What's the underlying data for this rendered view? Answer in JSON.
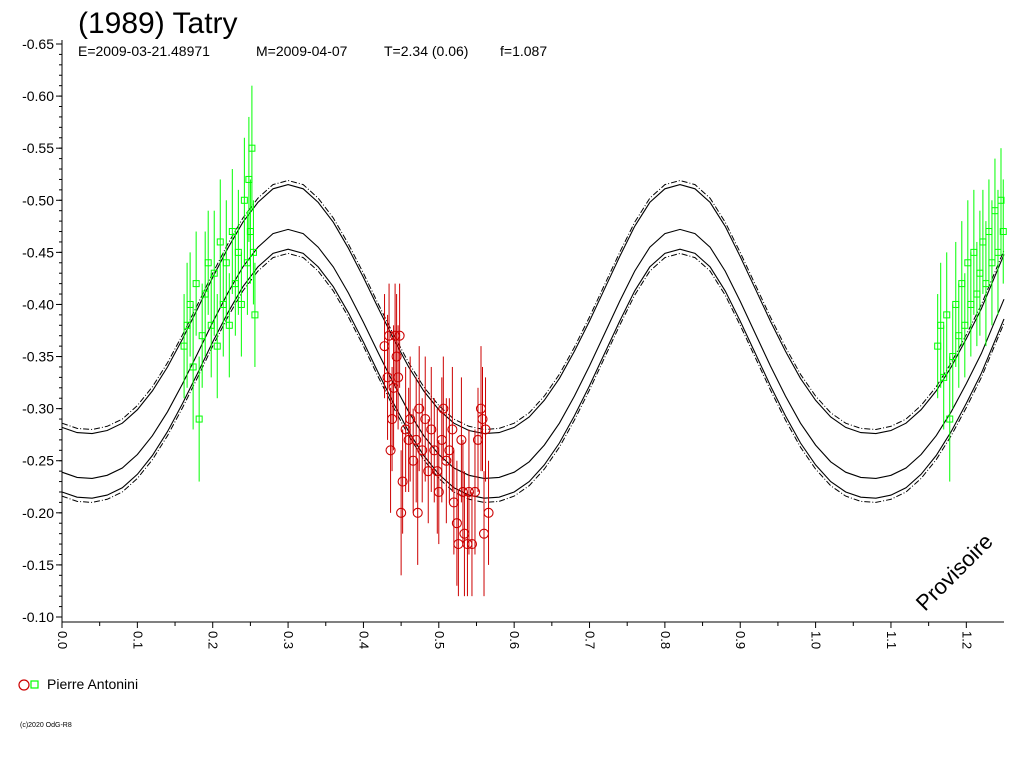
{
  "title": "(1989) Tatry",
  "subtitle": {
    "epoch": "E=2009-03-21.48971",
    "mean": "M=2009-04-07",
    "period": "T=2.34 (0.06)",
    "f": "f=1.087"
  },
  "watermark": "Provisoire",
  "copyright": "(c)2020 OdG-R8",
  "colors": {
    "green": "#00ff00",
    "red": "#cc0000",
    "curve": "#000000"
  },
  "legend": [
    {
      "label": "Pierre Antonini",
      "markers": [
        "circle-red",
        "square-green"
      ]
    }
  ],
  "chart_data": {
    "type": "scatter",
    "xlim": [
      0.0,
      1.25
    ],
    "ylim": [
      -0.65,
      -0.1
    ],
    "y_axis_inverted": true,
    "x_ticks": [
      "0.0",
      "0.1",
      "0.2",
      "0.3",
      "0.4",
      "0.5",
      "0.6",
      "0.7",
      "0.8",
      "0.9",
      "1.0",
      "1.1",
      "1.2"
    ],
    "y_ticks": [
      "-0.65",
      "-0.60",
      "-0.55",
      "-0.50",
      "-0.45",
      "-0.40",
      "-0.35",
      "-0.30",
      "-0.25",
      "-0.20",
      "-0.15",
      "-0.10"
    ],
    "model": {
      "description": "bimodal fit curve",
      "x": [
        0.0,
        0.02,
        0.04,
        0.06,
        0.08,
        0.1,
        0.12,
        0.14,
        0.16,
        0.18,
        0.2,
        0.22,
        0.24,
        0.26,
        0.28,
        0.3,
        0.32,
        0.34,
        0.36,
        0.38,
        0.4,
        0.42,
        0.44,
        0.46,
        0.48,
        0.5,
        0.52,
        0.54,
        0.56,
        0.58,
        0.6,
        0.62,
        0.64,
        0.66,
        0.68,
        0.7,
        0.72,
        0.74,
        0.76,
        0.78,
        0.8,
        0.82,
        0.84,
        0.86,
        0.88,
        0.9,
        0.92,
        0.94,
        0.96,
        0.98,
        1.0,
        1.02,
        1.04,
        1.06,
        1.08,
        1.1,
        1.12,
        1.14,
        1.16,
        1.18,
        1.2,
        1.22,
        1.25
      ],
      "center": [
        -0.239,
        -0.234,
        -0.233,
        -0.236,
        -0.243,
        -0.256,
        -0.274,
        -0.297,
        -0.324,
        -0.353,
        -0.383,
        -0.411,
        -0.436,
        -0.455,
        -0.468,
        -0.472,
        -0.468,
        -0.455,
        -0.436,
        -0.411,
        -0.383,
        -0.353,
        -0.324,
        -0.297,
        -0.274,
        -0.256,
        -0.243,
        -0.236,
        -0.233,
        -0.234,
        -0.239,
        -0.249,
        -0.265,
        -0.286,
        -0.312,
        -0.341,
        -0.372,
        -0.403,
        -0.432,
        -0.455,
        -0.468,
        -0.472,
        -0.468,
        -0.455,
        -0.432,
        -0.403,
        -0.372,
        -0.341,
        -0.312,
        -0.286,
        -0.265,
        -0.249,
        -0.239,
        -0.234,
        -0.233,
        -0.236,
        -0.243,
        -0.256,
        -0.274,
        -0.297,
        -0.324,
        -0.353,
        -0.405
      ],
      "upper_offset": 0.043,
      "lower_offset": -0.019
    },
    "series": [
      {
        "name": "Pierre Antonini",
        "marker": "square",
        "color": "green",
        "points": [
          [
            0.162,
            -0.36,
            0.05
          ],
          [
            0.166,
            -0.38,
            0.06
          ],
          [
            0.17,
            -0.4,
            0.05
          ],
          [
            0.174,
            -0.34,
            0.06
          ],
          [
            0.178,
            -0.42,
            0.05
          ],
          [
            0.182,
            -0.29,
            0.06
          ],
          [
            0.186,
            -0.37,
            0.05
          ],
          [
            0.19,
            -0.41,
            0.06
          ],
          [
            0.194,
            -0.44,
            0.05
          ],
          [
            0.198,
            -0.38,
            0.05
          ],
          [
            0.202,
            -0.43,
            0.06
          ],
          [
            0.206,
            -0.36,
            0.05
          ],
          [
            0.21,
            -0.46,
            0.06
          ],
          [
            0.214,
            -0.4,
            0.05
          ],
          [
            0.218,
            -0.44,
            0.06
          ],
          [
            0.222,
            -0.38,
            0.05
          ],
          [
            0.226,
            -0.47,
            0.06
          ],
          [
            0.23,
            -0.42,
            0.05
          ],
          [
            0.234,
            -0.45,
            0.06
          ],
          [
            0.238,
            -0.4,
            0.05
          ],
          [
            0.242,
            -0.5,
            0.06
          ],
          [
            0.246,
            -0.44,
            0.05
          ],
          [
            0.248,
            -0.52,
            0.06
          ],
          [
            0.25,
            -0.47,
            0.05
          ],
          [
            0.252,
            -0.55,
            0.06
          ],
          [
            0.254,
            -0.45,
            0.05
          ],
          [
            0.256,
            -0.39,
            0.05
          ],
          [
            1.162,
            -0.36,
            0.05
          ],
          [
            1.166,
            -0.38,
            0.06
          ],
          [
            1.17,
            -0.33,
            0.05
          ],
          [
            1.174,
            -0.39,
            0.06
          ],
          [
            1.178,
            -0.29,
            0.06
          ],
          [
            1.182,
            -0.35,
            0.05
          ],
          [
            1.186,
            -0.4,
            0.06
          ],
          [
            1.19,
            -0.37,
            0.05
          ],
          [
            1.194,
            -0.42,
            0.06
          ],
          [
            1.198,
            -0.38,
            0.05
          ],
          [
            1.202,
            -0.44,
            0.06
          ],
          [
            1.206,
            -0.4,
            0.05
          ],
          [
            1.21,
            -0.45,
            0.06
          ],
          [
            1.214,
            -0.41,
            0.05
          ],
          [
            1.218,
            -0.43,
            0.06
          ],
          [
            1.222,
            -0.46,
            0.05
          ],
          [
            1.226,
            -0.42,
            0.06
          ],
          [
            1.23,
            -0.47,
            0.05
          ],
          [
            1.234,
            -0.44,
            0.06
          ],
          [
            1.238,
            -0.49,
            0.05
          ],
          [
            1.242,
            -0.45,
            0.06
          ],
          [
            1.246,
            -0.5,
            0.05
          ],
          [
            1.249,
            -0.47,
            0.05
          ]
        ]
      },
      {
        "name": "Pierre Antonini",
        "marker": "circle",
        "color": "red",
        "points": [
          [
            0.428,
            -0.36,
            0.05
          ],
          [
            0.432,
            -0.33,
            0.06
          ],
          [
            0.434,
            -0.37,
            0.05
          ],
          [
            0.436,
            -0.26,
            0.06
          ],
          [
            0.438,
            -0.29,
            0.05
          ],
          [
            0.44,
            -0.32,
            0.06
          ],
          [
            0.442,
            -0.37,
            0.05
          ],
          [
            0.444,
            -0.35,
            0.06
          ],
          [
            0.446,
            -0.33,
            0.05
          ],
          [
            0.448,
            -0.37,
            0.05
          ],
          [
            0.45,
            -0.2,
            0.06
          ],
          [
            0.452,
            -0.23,
            0.05
          ],
          [
            0.456,
            -0.28,
            0.06
          ],
          [
            0.46,
            -0.27,
            0.05
          ],
          [
            0.462,
            -0.29,
            0.06
          ],
          [
            0.466,
            -0.25,
            0.05
          ],
          [
            0.47,
            -0.27,
            0.06
          ],
          [
            0.472,
            -0.2,
            0.05
          ],
          [
            0.474,
            -0.3,
            0.06
          ],
          [
            0.478,
            -0.26,
            0.05
          ],
          [
            0.482,
            -0.29,
            0.06
          ],
          [
            0.486,
            -0.24,
            0.05
          ],
          [
            0.49,
            -0.28,
            0.06
          ],
          [
            0.494,
            -0.26,
            0.05
          ],
          [
            0.498,
            -0.24,
            0.06
          ],
          [
            0.5,
            -0.22,
            0.05
          ],
          [
            0.504,
            -0.27,
            0.06
          ],
          [
            0.506,
            -0.3,
            0.05
          ],
          [
            0.51,
            -0.25,
            0.06
          ],
          [
            0.514,
            -0.26,
            0.05
          ],
          [
            0.518,
            -0.28,
            0.06
          ],
          [
            0.52,
            -0.21,
            0.05
          ],
          [
            0.524,
            -0.19,
            0.06
          ],
          [
            0.526,
            -0.17,
            0.05
          ],
          [
            0.53,
            -0.27,
            0.06
          ],
          [
            0.532,
            -0.22,
            0.05
          ],
          [
            0.534,
            -0.18,
            0.06
          ],
          [
            0.538,
            -0.17,
            0.05
          ],
          [
            0.54,
            -0.22,
            0.06
          ],
          [
            0.544,
            -0.17,
            0.05
          ],
          [
            0.548,
            -0.22,
            0.06
          ],
          [
            0.552,
            -0.27,
            0.05
          ],
          [
            0.556,
            -0.3,
            0.06
          ],
          [
            0.558,
            -0.29,
            0.05
          ],
          [
            0.56,
            -0.18,
            0.06
          ],
          [
            0.562,
            -0.28,
            0.05
          ],
          [
            0.566,
            -0.2,
            0.05
          ]
        ]
      }
    ]
  }
}
